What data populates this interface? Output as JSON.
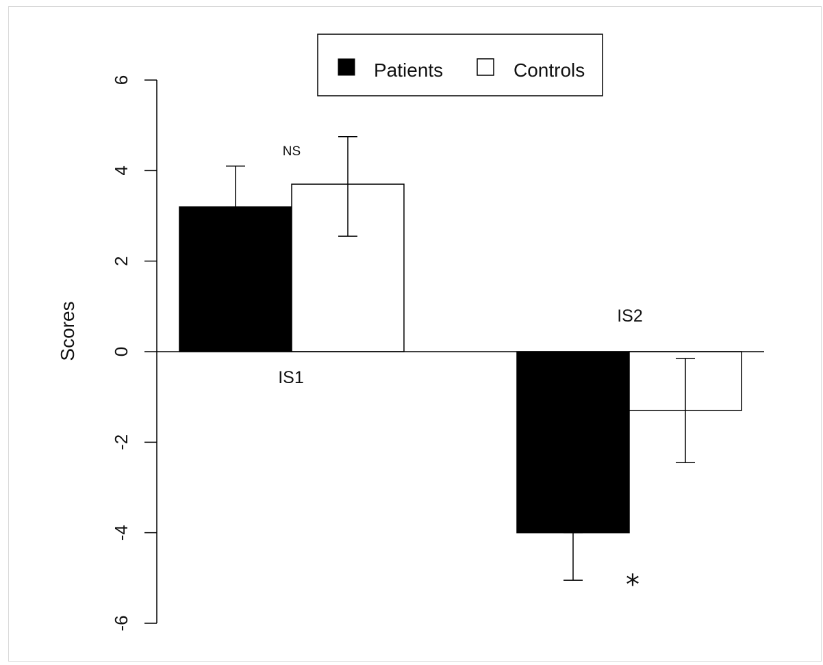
{
  "chart_data": {
    "type": "bar",
    "ylabel": "Scores",
    "ylim": [
      -6,
      6
    ],
    "yticks": [
      -6,
      -4,
      -2,
      0,
      2,
      4,
      6
    ],
    "categories": [
      "IS1",
      "IS2"
    ],
    "series": [
      {
        "name": "Patients",
        "values": [
          3.2,
          -4.0
        ],
        "error_high": [
          4.1,
          -4.0
        ],
        "error_low": [
          3.2,
          -5.05
        ],
        "fill": "#000000"
      },
      {
        "name": "Controls",
        "values": [
          3.7,
          -1.3
        ],
        "error_high": [
          4.75,
          -0.15
        ],
        "error_low": [
          2.55,
          -2.45
        ],
        "fill": "#ffffff"
      }
    ],
    "annotations": [
      {
        "text": "NS",
        "category": "IS1"
      },
      {
        "text": "*",
        "category": "IS2"
      }
    ],
    "legend": {
      "position": "top-center",
      "border": true
    },
    "grid": false
  }
}
